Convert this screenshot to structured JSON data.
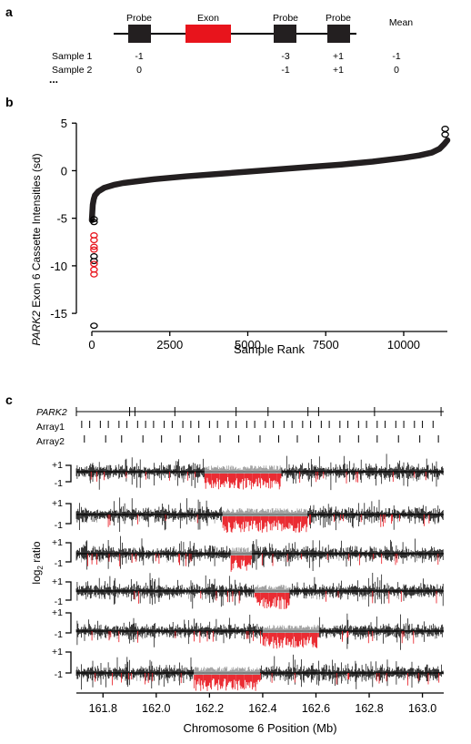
{
  "colors": {
    "highlight": "#e8141c",
    "ink": "#000000",
    "neutral": "#8a8a8a"
  },
  "panel_a": {
    "letter": "a",
    "header_probe_1": "Probe",
    "header_exon": "Exon",
    "header_probe_2": "Probe",
    "header_probe_3": "Probe",
    "header_mean": "Mean",
    "rows": [
      {
        "label": "Sample 1",
        "probe_1": "-1",
        "probe_2": "-3",
        "probe_3": "+1",
        "mean": "-1"
      },
      {
        "label": "Sample 2",
        "probe_1": "0",
        "probe_2": "-1",
        "probe_3": "+1",
        "mean": "0"
      }
    ],
    "ellipsis": "..."
  },
  "panel_b": {
    "letter": "b"
  },
  "panel_c": {
    "letter": "c",
    "track_gene": "PARK2",
    "track_array1": "Array1",
    "track_array2": "Array2",
    "tick_plus": "+1",
    "tick_minus": "-1",
    "ylabel_main": "log",
    "ylabel_sub": "2",
    "ylabel_rest": " ratio"
  },
  "chart_data": [
    {
      "type": "scatter",
      "panel": "b",
      "ylabel_prefix": "PARK2",
      "ylabel_rest": " Exon 6 Cassette Intensities (sd)",
      "xlabel": "Sample Rank",
      "xlim": [
        0,
        11400
      ],
      "ylim": [
        -17,
        5.5
      ],
      "xticks": [
        0,
        2500,
        5000,
        7500,
        10000
      ],
      "yticks": [
        5,
        0,
        -5,
        -10,
        -15
      ],
      "grid": false,
      "main_curve": {
        "x": [
          0,
          30,
          60,
          100,
          200,
          400,
          700,
          1000,
          1500,
          2000,
          3000,
          4000,
          5000,
          6000,
          7000,
          8000,
          9000,
          10000,
          10500,
          10900,
          11150,
          11300,
          11400
        ],
        "y": [
          -5.2,
          -3.6,
          -3.0,
          -2.6,
          -2.2,
          -1.8,
          -1.5,
          -1.3,
          -1.1,
          -0.9,
          -0.6,
          -0.35,
          -0.1,
          0.15,
          0.4,
          0.65,
          0.95,
          1.35,
          1.6,
          1.9,
          2.3,
          2.8,
          3.2
        ]
      },
      "outliers_red": [
        {
          "x": 70,
          "y": -6.8
        },
        {
          "x": 70,
          "y": -7.3
        },
        {
          "x": 70,
          "y": -8.0
        },
        {
          "x": 70,
          "y": -8.3
        },
        {
          "x": 70,
          "y": -9.8
        },
        {
          "x": 70,
          "y": -10.4
        },
        {
          "x": 70,
          "y": -10.9
        }
      ],
      "outliers_black": [
        {
          "x": 70,
          "y": -5.4
        },
        {
          "x": 70,
          "y": -5.1
        },
        {
          "x": 70,
          "y": -9.0
        },
        {
          "x": 70,
          "y": -9.5
        },
        {
          "x": 70,
          "y": -16.3
        },
        {
          "x": 11330,
          "y": 3.8
        },
        {
          "x": 11330,
          "y": 4.4
        }
      ]
    },
    {
      "type": "line",
      "panel": "c",
      "xlabel": "Chromosome 6 Position (Mb)",
      "xlim": [
        161.7,
        163.08
      ],
      "xticks": [
        161.8,
        162.0,
        162.2,
        162.4,
        162.6,
        162.8,
        163.0
      ],
      "xticklabels": [
        "161.8",
        "162.0",
        "162.2",
        "162.4",
        "162.6",
        "162.8",
        "163.0"
      ],
      "park2_marks_mb": [
        161.7,
        161.9,
        161.92,
        162.07,
        162.3,
        162.42,
        162.57,
        162.61,
        162.82,
        163.07
      ],
      "array1_probes_mb": [
        161.72,
        161.75,
        161.79,
        161.82,
        161.86,
        161.89,
        161.93,
        161.96,
        161.99,
        162.03,
        162.06,
        162.1,
        162.13,
        162.16,
        162.2,
        162.23,
        162.27,
        162.3,
        162.34,
        162.37,
        162.41,
        162.44,
        162.48,
        162.51,
        162.55,
        162.58,
        162.62,
        162.65,
        162.69,
        162.72,
        162.76,
        162.79,
        162.83,
        162.86,
        162.9,
        162.93,
        162.97,
        163.0,
        163.04
      ],
      "array2_probes_mb": [
        161.73,
        161.81,
        161.87,
        161.95,
        162.02,
        162.09,
        162.16,
        162.24,
        162.31,
        162.39,
        162.46,
        162.53,
        162.61,
        162.69,
        162.76,
        162.83,
        162.91,
        162.99,
        163.06
      ],
      "deletions_mb": [
        {
          "start": 162.18,
          "end": 162.47
        },
        {
          "start": 162.25,
          "end": 162.57
        },
        {
          "start": 162.28,
          "end": 162.36
        },
        {
          "start": 162.37,
          "end": 162.5
        },
        {
          "start": 162.4,
          "end": 162.61
        },
        {
          "start": 162.14,
          "end": 162.39
        }
      ]
    }
  ]
}
